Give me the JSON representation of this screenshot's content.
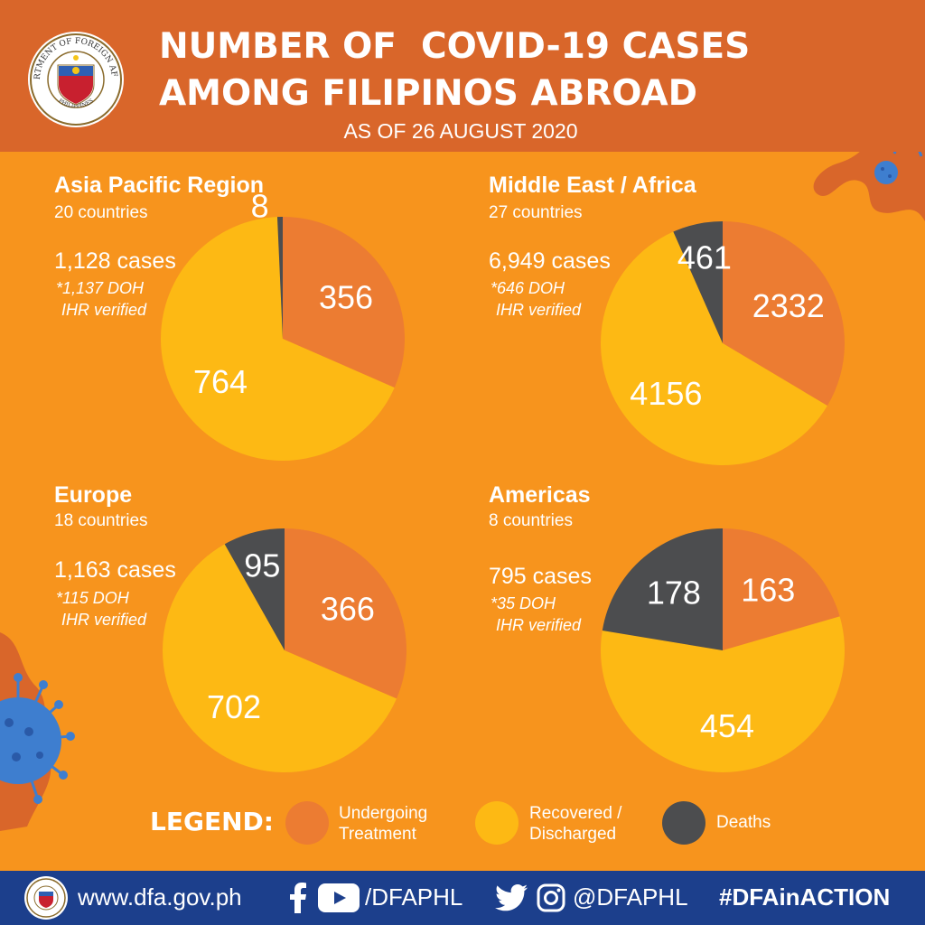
{
  "header": {
    "title_line1": "NUMBER OF  COVID-19 CASES",
    "title_line2": "AMONG FILIPINOS ABROAD",
    "subtitle": "AS OF 26 AUGUST 2020",
    "seal_top_text": "DEPARTMENT OF FOREIGN AFFAIRS",
    "seal_bottom_text": "PHILIPPINES"
  },
  "colors": {
    "background": "#f7941d",
    "header": "#d9662a",
    "treatment": "#ec7c32",
    "recovered": "#fdb914",
    "deaths": "#4c4d4f",
    "footer": "#1c3f8c",
    "virus": "#3e7ecf"
  },
  "chart_data": [
    {
      "type": "pie",
      "title": "Asia Pacific Region",
      "countries": "20 countries",
      "total": "1,128 cases",
      "note_line1": "*1,137 DOH",
      "note_line2": "IHR verified",
      "categories": [
        "Undergoing Treatment",
        "Recovered / Discharged",
        "Deaths"
      ],
      "values": [
        356,
        764,
        8
      ]
    },
    {
      "type": "pie",
      "title": "Middle East / Africa",
      "countries": "27 countries",
      "total": "6,949 cases",
      "note_line1": "*646 DOH",
      "note_line2": "IHR verified",
      "categories": [
        "Undergoing Treatment",
        "Recovered / Discharged",
        "Deaths"
      ],
      "values": [
        2332,
        4156,
        461
      ]
    },
    {
      "type": "pie",
      "title": "Europe",
      "countries": "18 countries",
      "total": "1,163 cases",
      "note_line1": "*115 DOH",
      "note_line2": "IHR verified",
      "categories": [
        "Undergoing Treatment",
        "Recovered / Discharged",
        "Deaths"
      ],
      "values": [
        366,
        702,
        95
      ]
    },
    {
      "type": "pie",
      "title": "Americas",
      "countries": "8 countries",
      "total": "795 cases",
      "note_line1": "*35 DOH",
      "note_line2": "IHR verified",
      "categories": [
        "Undergoing Treatment",
        "Recovered / Discharged",
        "Deaths"
      ],
      "values": [
        163,
        454,
        178
      ]
    }
  ],
  "legend": {
    "title": "LEGEND:",
    "treatment_line1": "Undergoing",
    "treatment_line2": "Treatment",
    "recovered_line1": "Recovered /",
    "recovered_line2": "Discharged",
    "deaths": "Deaths"
  },
  "footer": {
    "website": "www.dfa.gov.ph",
    "page_handle": "/DFAPHL",
    "social_handle": "@DFAPHL",
    "hashtag": "#DFAinACTION"
  },
  "icons": [
    "dfa-seal-icon",
    "facebook-icon",
    "youtube-icon",
    "twitter-icon",
    "instagram-icon",
    "virus-icon"
  ]
}
